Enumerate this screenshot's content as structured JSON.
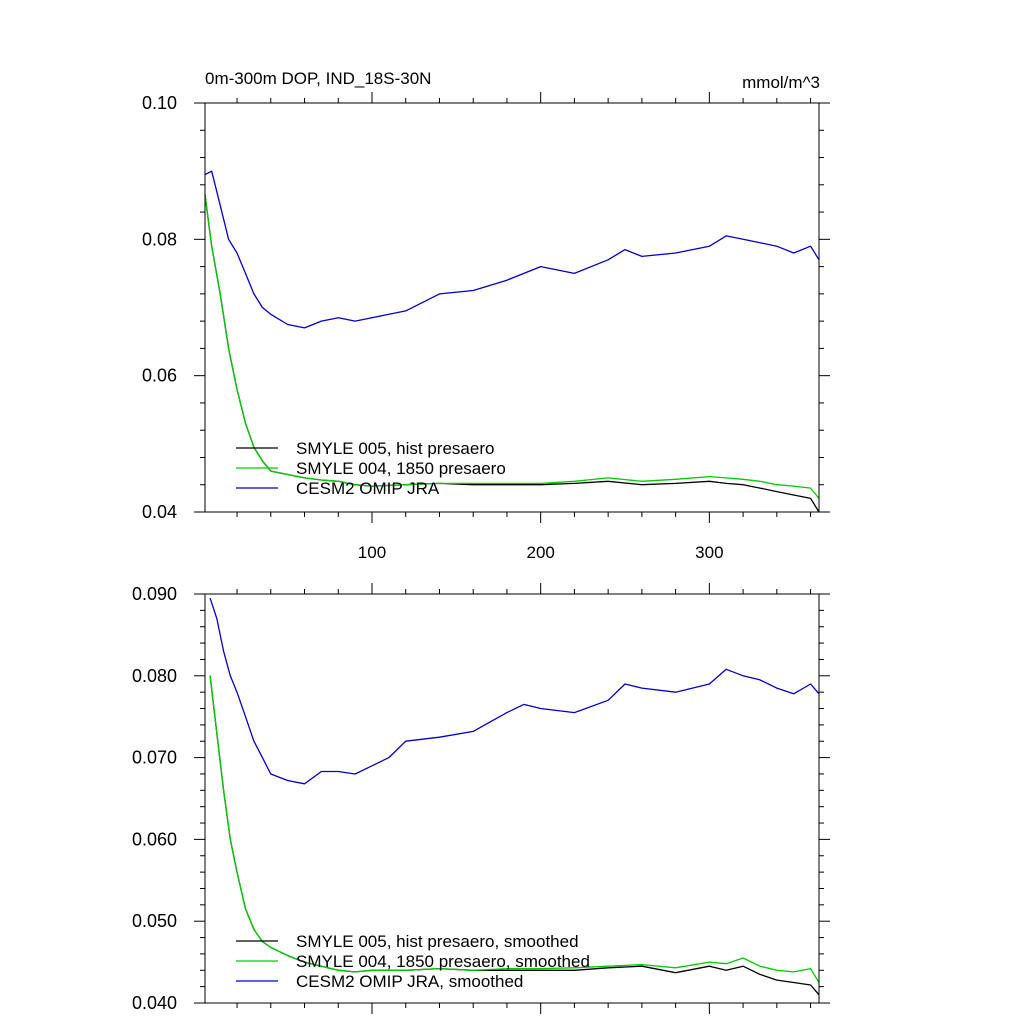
{
  "chart_data": [
    {
      "type": "line",
      "title_left": "0m-300m DOP, IND_18S-30N",
      "title_right": "mmol/m^3",
      "xlim": [
        1,
        365
      ],
      "ylim": [
        0.04,
        0.1
      ],
      "xticks": [
        100,
        200,
        300
      ],
      "xtick_labels": [
        "100",
        "200",
        "300"
      ],
      "yticks": [
        0.04,
        0.06,
        0.08,
        0.1
      ],
      "ytick_labels": [
        "0.04",
        "0.06",
        "0.08",
        "0.10"
      ],
      "legend_placement": "lower-left",
      "grid": false,
      "series": [
        {
          "name": "SMYLE 005, hist presaero",
          "color": "#000000",
          "x": [
            1,
            5,
            10,
            15,
            20,
            25,
            30,
            35,
            40,
            50,
            60,
            70,
            80,
            90,
            100,
            120,
            140,
            160,
            180,
            200,
            220,
            240,
            260,
            280,
            300,
            310,
            320,
            330,
            340,
            350,
            360,
            365
          ],
          "y": [
            0.0865,
            0.079,
            0.072,
            0.064,
            0.058,
            0.053,
            0.0495,
            0.0475,
            0.046,
            0.0455,
            0.045,
            0.0447,
            0.0445,
            0.044,
            0.0438,
            0.044,
            0.0442,
            0.044,
            0.044,
            0.044,
            0.0442,
            0.0445,
            0.044,
            0.0442,
            0.0445,
            0.0442,
            0.044,
            0.0435,
            0.043,
            0.0425,
            0.042,
            0.04
          ]
        },
        {
          "name": "SMYLE 004, 1850 presaero",
          "color": "#00cc00",
          "x": [
            1,
            5,
            10,
            15,
            20,
            25,
            30,
            35,
            40,
            50,
            60,
            70,
            80,
            90,
            100,
            120,
            140,
            160,
            180,
            200,
            220,
            240,
            260,
            280,
            300,
            310,
            320,
            330,
            340,
            350,
            360,
            365
          ],
          "y": [
            0.0865,
            0.079,
            0.072,
            0.064,
            0.058,
            0.053,
            0.0495,
            0.0475,
            0.046,
            0.0455,
            0.045,
            0.0447,
            0.0445,
            0.044,
            0.0438,
            0.044,
            0.0442,
            0.0442,
            0.0442,
            0.0442,
            0.0445,
            0.045,
            0.0445,
            0.0448,
            0.0452,
            0.045,
            0.0448,
            0.0445,
            0.044,
            0.0438,
            0.0435,
            0.042
          ]
        },
        {
          "name": "CESM2 OMIP JRA",
          "color": "#0000cc",
          "x": [
            1,
            5,
            10,
            15,
            20,
            25,
            30,
            35,
            40,
            50,
            60,
            70,
            80,
            90,
            100,
            120,
            140,
            160,
            180,
            200,
            220,
            240,
            250,
            260,
            280,
            300,
            310,
            320,
            330,
            340,
            350,
            360,
            365
          ],
          "y": [
            0.0895,
            0.09,
            0.085,
            0.08,
            0.078,
            0.075,
            0.072,
            0.07,
            0.069,
            0.0675,
            0.067,
            0.068,
            0.0685,
            0.068,
            0.0685,
            0.0695,
            0.072,
            0.0725,
            0.074,
            0.076,
            0.075,
            0.077,
            0.0785,
            0.0775,
            0.078,
            0.079,
            0.0805,
            0.08,
            0.0795,
            0.079,
            0.078,
            0.079,
            0.077
          ]
        }
      ]
    },
    {
      "type": "line",
      "xlim": [
        1,
        365
      ],
      "ylim": [
        0.04,
        0.09
      ],
      "xticks": [
        100,
        200,
        300
      ],
      "yticks": [
        0.04,
        0.05,
        0.06,
        0.07,
        0.08,
        0.09
      ],
      "ytick_labels": [
        "0.040",
        "0.050",
        "0.060",
        "0.070",
        "0.080",
        "0.090"
      ],
      "legend_placement": "lower-left",
      "grid": false,
      "series": [
        {
          "name": "SMYLE 005, hist presaero, smoothed",
          "color": "#000000",
          "x": [
            4,
            8,
            12,
            16,
            20,
            25,
            30,
            35,
            40,
            50,
            60,
            70,
            80,
            90,
            100,
            120,
            140,
            160,
            180,
            200,
            220,
            240,
            260,
            280,
            300,
            310,
            320,
            330,
            340,
            350,
            360,
            365
          ],
          "y": [
            0.08,
            0.073,
            0.066,
            0.06,
            0.056,
            0.0515,
            0.049,
            0.0475,
            0.0468,
            0.0458,
            0.045,
            0.0445,
            0.044,
            0.0438,
            0.044,
            0.044,
            0.0442,
            0.044,
            0.044,
            0.044,
            0.044,
            0.0443,
            0.0445,
            0.0437,
            0.0445,
            0.044,
            0.0445,
            0.0435,
            0.0428,
            0.0425,
            0.0422,
            0.041
          ]
        },
        {
          "name": "SMYLE 004, 1850 presaero, smoothed",
          "color": "#00cc00",
          "x": [
            4,
            8,
            12,
            16,
            20,
            25,
            30,
            35,
            40,
            50,
            60,
            70,
            80,
            90,
            100,
            120,
            140,
            160,
            180,
            200,
            220,
            240,
            260,
            280,
            300,
            310,
            320,
            330,
            340,
            350,
            360,
            365
          ],
          "y": [
            0.08,
            0.073,
            0.066,
            0.06,
            0.056,
            0.0515,
            0.049,
            0.0475,
            0.0468,
            0.0458,
            0.045,
            0.0445,
            0.044,
            0.0438,
            0.044,
            0.044,
            0.0442,
            0.044,
            0.0442,
            0.0442,
            0.0443,
            0.0445,
            0.0447,
            0.0443,
            0.045,
            0.0448,
            0.0455,
            0.0445,
            0.044,
            0.0438,
            0.0442,
            0.0425
          ]
        },
        {
          "name": "CESM2 OMIP JRA, smoothed",
          "color": "#0000cc",
          "x": [
            4,
            8,
            12,
            16,
            20,
            25,
            30,
            35,
            40,
            50,
            60,
            70,
            80,
            90,
            100,
            110,
            120,
            140,
            160,
            180,
            190,
            200,
            220,
            240,
            250,
            260,
            280,
            300,
            310,
            320,
            330,
            340,
            350,
            360,
            365
          ],
          "y": [
            0.0895,
            0.087,
            0.083,
            0.08,
            0.078,
            0.075,
            0.072,
            0.07,
            0.068,
            0.0672,
            0.0668,
            0.0683,
            0.0683,
            0.068,
            0.069,
            0.07,
            0.072,
            0.0725,
            0.0732,
            0.0755,
            0.0765,
            0.076,
            0.0755,
            0.077,
            0.079,
            0.0785,
            0.078,
            0.079,
            0.0808,
            0.08,
            0.0795,
            0.0785,
            0.0778,
            0.079,
            0.0778
          ]
        }
      ]
    }
  ]
}
